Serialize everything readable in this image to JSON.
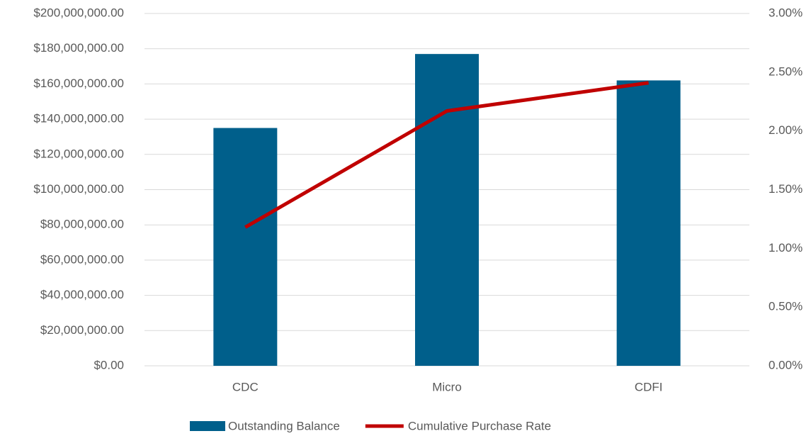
{
  "chart_data": {
    "type": "bar",
    "categories": [
      "CDC",
      "Micro",
      "CDFI"
    ],
    "series": [
      {
        "name": "Outstanding Balance",
        "type": "bar",
        "color": "#005f8b",
        "values": [
          135000000,
          177000000,
          162000000
        ]
      },
      {
        "name": "Cumulative Purchase Rate",
        "type": "line",
        "axis": "y2",
        "color": "#c00000",
        "values": [
          1.18,
          2.17,
          2.41
        ]
      }
    ],
    "ylim": [
      0,
      200000000
    ],
    "yticks": [
      {
        "value": 0,
        "label": "$0.00"
      },
      {
        "value": 20000000,
        "label": "$20,000,000.00"
      },
      {
        "value": 40000000,
        "label": "$40,000,000.00"
      },
      {
        "value": 60000000,
        "label": "$60,000,000.00"
      },
      {
        "value": 80000000,
        "label": "$80,000,000.00"
      },
      {
        "value": 100000000,
        "label": "$100,000,000.00"
      },
      {
        "value": 120000000,
        "label": "$120,000,000.00"
      },
      {
        "value": 140000000,
        "label": "$140,000,000.00"
      },
      {
        "value": 160000000,
        "label": "$160,000,000.00"
      },
      {
        "value": 180000000,
        "label": "$180,000,000.00"
      },
      {
        "value": 200000000,
        "label": "$200,000,000.00"
      }
    ],
    "y2lim": [
      0,
      3
    ],
    "y2ticks": [
      {
        "value": 0,
        "label": "0.00%"
      },
      {
        "value": 0.5,
        "label": "0.50%"
      },
      {
        "value": 1,
        "label": "1.00%"
      },
      {
        "value": 1.5,
        "label": "1.50%"
      },
      {
        "value": 2,
        "label": "2.00%"
      },
      {
        "value": 2.5,
        "label": "2.50%"
      },
      {
        "value": 3,
        "label": "3.00%"
      }
    ],
    "grid": true,
    "legend": "bottom"
  }
}
